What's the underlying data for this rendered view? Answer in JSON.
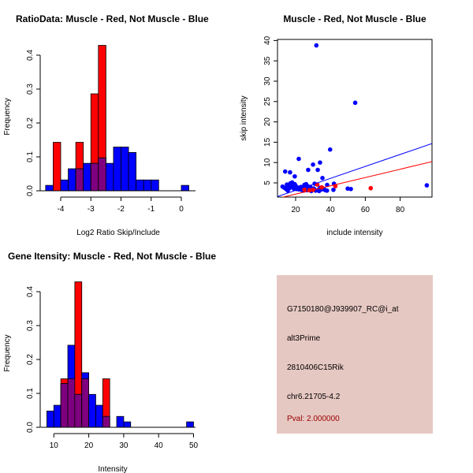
{
  "colors": {
    "red": "#ff0000",
    "blue": "#0000ff",
    "overlap": "#7f007f",
    "panel_bg": "#e6c8c2",
    "pval": "#990000"
  },
  "chart_data": [
    {
      "type": "bar",
      "title": "RatioData: Muscle - Red, Not Muscle - Blue",
      "xlabel": "Log2 Ratio Skip/Include",
      "ylabel": "Frequency",
      "bin_width": 0.25,
      "bin_starts": [
        -4.5,
        -4.25,
        -4.0,
        -3.75,
        -3.5,
        -3.25,
        -3.0,
        -2.75,
        -2.5,
        -2.25,
        -2.0,
        -1.75,
        -1.5,
        -1.25,
        -1.0,
        0.0
      ],
      "series": [
        {
          "name": "Not Muscle",
          "color": "blue",
          "values": [
            0.016,
            0,
            0.032,
            0.065,
            0.065,
            0.081,
            0.081,
            0.097,
            0.081,
            0.129,
            0.129,
            0.113,
            0.032,
            0.032,
            0.032,
            0.016
          ]
        },
        {
          "name": "Muscle",
          "color": "red",
          "values": [
            0,
            0.143,
            0,
            0,
            0.143,
            0,
            0.286,
            0.429,
            0,
            0,
            0,
            0,
            0,
            0,
            0,
            0
          ]
        }
      ],
      "xticks": [
        "-4",
        "-3",
        "-2",
        "-1",
        "0"
      ],
      "xtick_values": [
        -4,
        -3,
        -2,
        -1,
        0
      ],
      "yticks": [
        "0.0",
        "0.1",
        "0.2",
        "0.3",
        "0.4"
      ],
      "ytick_values": [
        0,
        0.1,
        0.2,
        0.3,
        0.4
      ]
    },
    {
      "type": "scatter",
      "title": "Muscle - Red, Not Muscle - Blue",
      "xlabel": "include intensity",
      "ylabel": "skip intensity",
      "xlim": [
        9.6,
        98.3
      ],
      "ylim": [
        1.5,
        40.2
      ],
      "xticks": [
        "20",
        "40",
        "60",
        "80"
      ],
      "xtick_values": [
        20,
        40,
        60,
        80
      ],
      "yticks": [
        "5",
        "10",
        "15",
        "20",
        "25",
        "30",
        "35",
        "40"
      ],
      "ytick_values": [
        5,
        10,
        15,
        20,
        25,
        30,
        35,
        40
      ],
      "series": [
        {
          "name": "Not Muscle",
          "color": "blue",
          "points": [
            [
              31.9,
              38.8
            ],
            [
              54.2,
              24.7
            ],
            [
              39.8,
              13.2
            ],
            [
              21.8,
              10.9
            ],
            [
              30,
              9.5
            ],
            [
              34,
              10
            ],
            [
              27.2,
              8.2
            ],
            [
              32.7,
              8.2
            ],
            [
              14,
              7.8
            ],
            [
              16.8,
              7.6
            ],
            [
              19.5,
              6.6
            ],
            [
              35.4,
              6.2
            ],
            [
              95.3,
              4.4
            ],
            [
              49.9,
              3.6
            ],
            [
              51.7,
              3.5
            ],
            [
              38.1,
              4.5
            ],
            [
              42,
              4.8
            ],
            [
              41.7,
              3.3
            ],
            [
              38,
              3.1
            ],
            [
              30.9,
              4.8
            ],
            [
              12.5,
              4.1
            ],
            [
              13.5,
              3.8
            ],
            [
              14.5,
              3.5
            ],
            [
              15,
              4.6
            ],
            [
              15.5,
              3.1
            ],
            [
              16,
              4.2
            ],
            [
              16.5,
              3.7
            ],
            [
              17,
              4.9
            ],
            [
              17.5,
              4.4
            ],
            [
              18,
              5.1
            ],
            [
              18.5,
              4.0
            ],
            [
              19,
              3.6
            ],
            [
              19.5,
              4.7
            ],
            [
              20,
              4.3
            ],
            [
              20.5,
              3.5
            ],
            [
              21,
              3.9
            ],
            [
              22,
              3.4
            ],
            [
              23,
              4.0
            ],
            [
              23.5,
              3.3
            ],
            [
              24,
              3.8
            ],
            [
              25,
              4.5
            ],
            [
              25.5,
              3.6
            ],
            [
              26,
              4.7
            ],
            [
              26.5,
              3.2
            ],
            [
              27,
              4.2
            ],
            [
              27.5,
              3.7
            ],
            [
              28,
              3.4
            ],
            [
              29,
              3.0
            ],
            [
              29.5,
              3.3
            ],
            [
              30.5,
              3.6
            ],
            [
              31.5,
              3.1
            ],
            [
              33,
              3.3
            ],
            [
              34,
              3.8
            ],
            [
              35,
              3.4
            ],
            [
              36,
              3.6
            ],
            [
              37,
              3.2
            ],
            [
              21,
              3.5
            ],
            [
              18,
              4.2
            ],
            [
              24.5,
              3.1
            ],
            [
              28.5,
              4.0
            ],
            [
              33.5,
              3.0
            ],
            [
              15.8,
              3.9
            ]
          ]
        },
        {
          "name": "Muscle",
          "color": "red",
          "points": [
            [
              32.4,
              4.6
            ],
            [
              42.8,
              4.2
            ],
            [
              63.1,
              3.7
            ],
            [
              28,
              3.2
            ],
            [
              25,
              3.4
            ],
            [
              35,
              3.9
            ],
            [
              30,
              3.3
            ]
          ]
        }
      ],
      "lines": [
        {
          "name": "Not Muscle fit",
          "color": "blue",
          "intercept": 0.23,
          "slope": 0.147
        },
        {
          "name": "Muscle fit",
          "color": "red",
          "intercept": 0.2,
          "slope": 0.102
        }
      ]
    },
    {
      "type": "bar",
      "title": "Gene Itensity: Muscle - Red, Not Muscle - Blue",
      "xlabel": "Intensity",
      "ylabel": "Frequency",
      "bin_width": 2,
      "bin_starts": [
        8,
        10,
        12,
        14,
        16,
        18,
        20,
        22,
        24,
        26,
        28,
        30,
        48
      ],
      "series": [
        {
          "name": "Not Muscle",
          "color": "blue",
          "values": [
            0.048,
            0.065,
            0.129,
            0.242,
            0.097,
            0.161,
            0.097,
            0.065,
            0.032,
            0,
            0.032,
            0.016,
            0.016
          ]
        },
        {
          "name": "Muscle",
          "color": "red",
          "values": [
            0,
            0,
            0.143,
            0.143,
            0.429,
            0.143,
            0,
            0,
            0.143,
            0,
            0,
            0,
            0
          ]
        }
      ],
      "xticks": [
        "10",
        "20",
        "30",
        "40",
        "50"
      ],
      "xtick_values": [
        10,
        20,
        30,
        40,
        50
      ],
      "yticks": [
        "0.0",
        "0.1",
        "0.2",
        "0.3",
        "0.4"
      ],
      "ytick_values": [
        0,
        0.1,
        0.2,
        0.3,
        0.4
      ]
    }
  ],
  "info_panel": {
    "probe": "G7150180@J939907_RC@i_at",
    "event_type": "alt3Prime",
    "gene": "2810406C15Rik",
    "location": "chr6.21705-4.2",
    "pval": "Pval: 2.000000"
  }
}
